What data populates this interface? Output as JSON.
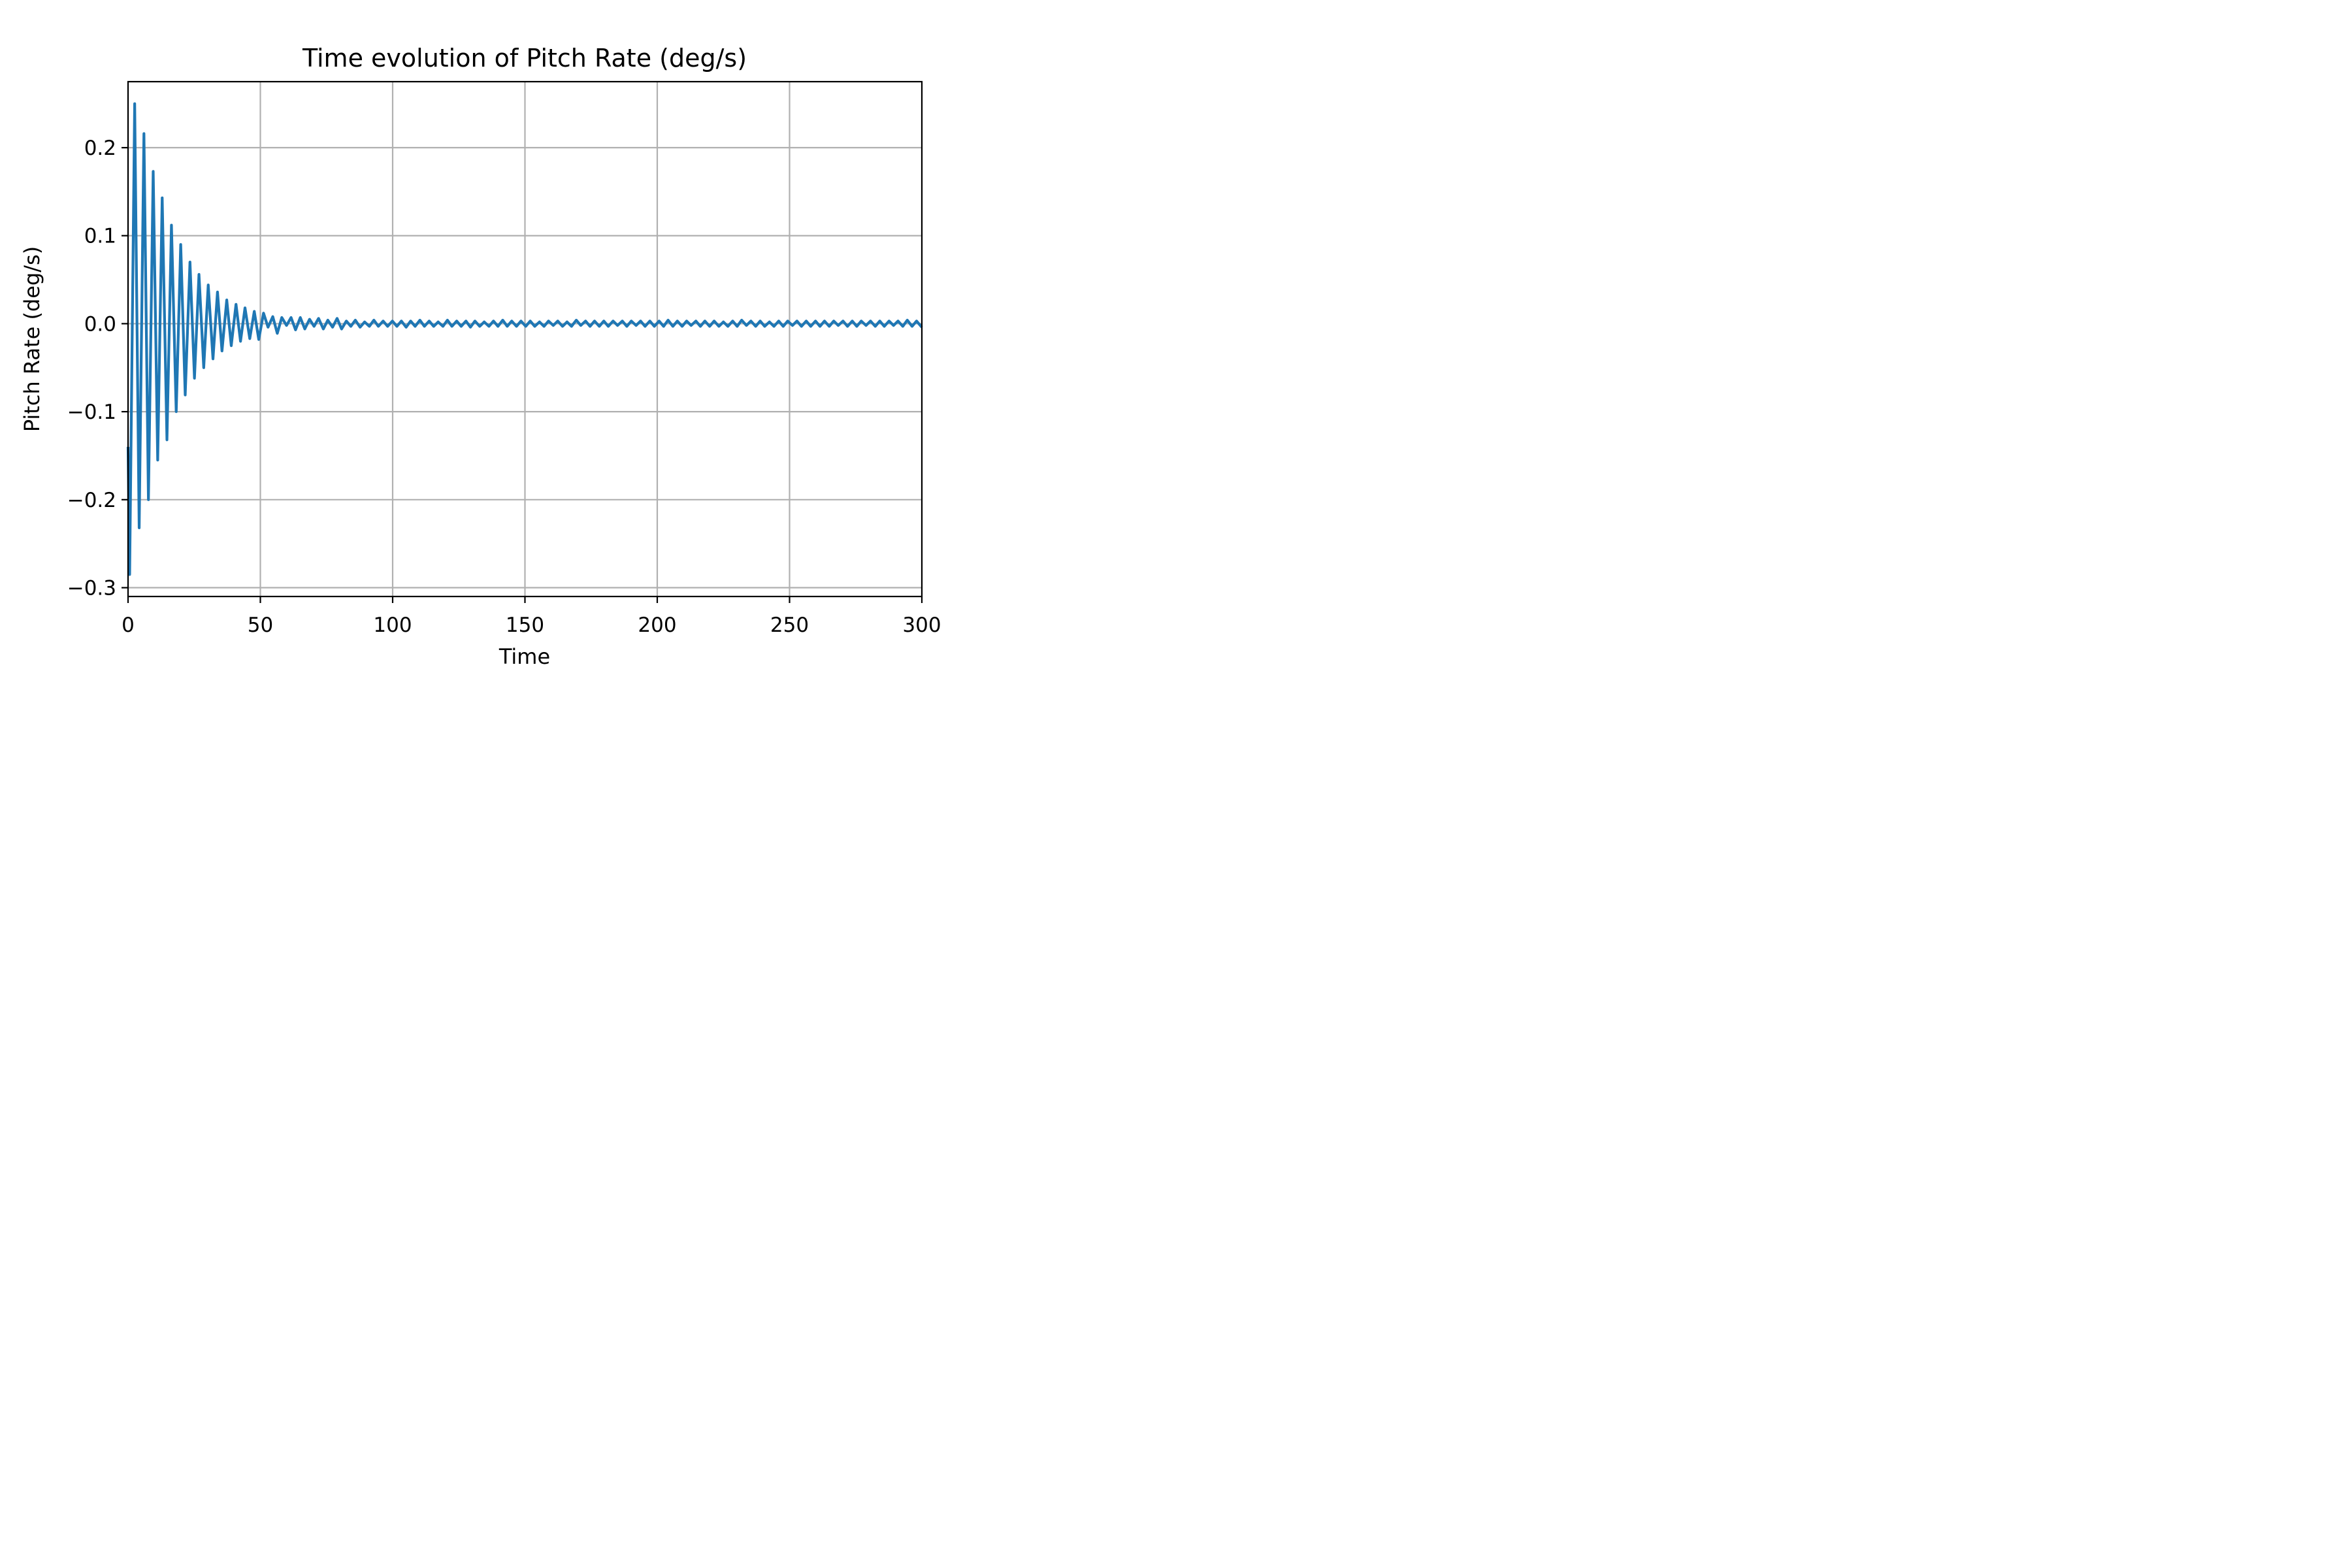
{
  "chart_data": {
    "type": "line",
    "title": "Time evolution of Pitch Rate (deg/s)",
    "xlabel": "Time",
    "ylabel": "Pitch Rate (deg/s)",
    "xlim": [
      0,
      300
    ],
    "ylim": [
      -0.31,
      0.275
    ],
    "grid": true,
    "xticks": [
      0,
      50,
      100,
      150,
      200,
      250,
      300
    ],
    "xtick_labels": [
      "0",
      "50",
      "100",
      "150",
      "200",
      "250",
      "300"
    ],
    "yticks": [
      -0.3,
      -0.2,
      -0.1,
      0.0,
      0.1,
      0.2
    ],
    "ytick_labels": [
      "−0.3",
      "−0.2",
      "−0.1",
      "0.0",
      "0.1",
      "0.2"
    ],
    "color": "#1f77b4",
    "series": [
      {
        "x": [
          0,
          0.6,
          2.5,
          4.2,
          6.0,
          7.7,
          9.5,
          11.2,
          12.9,
          14.7,
          16.4,
          18.2,
          19.9,
          21.6,
          23.4,
          25.1,
          26.8,
          28.6,
          30.3,
          32.1,
          33.8,
          35.5,
          37.3,
          39.0,
          40.8,
          42.5,
          44.2,
          46.0,
          47.7,
          49.4,
          51.2,
          52.9,
          54.7,
          56.4,
          58.1,
          59.9,
          61.6,
          63.3,
          65.1,
          66.8,
          68.6,
          70.3,
          72.0,
          73.8,
          75.5,
          77.3,
          79.0,
          80.7,
          82.5,
          84.2,
          85.9,
          87.7,
          89.4,
          91.2,
          92.9,
          94.6,
          96.4,
          98.1,
          99.9,
          101.6,
          103.3,
          105.1,
          106.8,
          108.5,
          110.3,
          112.0,
          113.8,
          115.5,
          117.2,
          119.0,
          120.7,
          122.4,
          124.2,
          125.9,
          127.7,
          129.4,
          131.1,
          132.9,
          134.6,
          136.4,
          138.1,
          139.8,
          141.6,
          143.3,
          145.0,
          146.8,
          148.5,
          150.3,
          152.0,
          153.7,
          155.5,
          157.2,
          158.9,
          160.7,
          162.4,
          164.2,
          165.9,
          167.6,
          169.4,
          171.1,
          172.9,
          174.6,
          176.3,
          178.1,
          179.8,
          181.5,
          183.3,
          185.0,
          186.8,
          188.5,
          190.2,
          192.0,
          193.7,
          195.4,
          197.2,
          198.9,
          200.7,
          202.4,
          204.1,
          205.9,
          207.6,
          209.4,
          211.1,
          212.8,
          214.6,
          216.3,
          218.0,
          219.8,
          221.5,
          223.3,
          225.0,
          226.7,
          228.5,
          230.2,
          231.9,
          233.7,
          235.4,
          237.2,
          238.9,
          240.6,
          242.4,
          244.1,
          245.9,
          247.6,
          249.3,
          251.1,
          252.8,
          254.5,
          256.3,
          258.0,
          259.8,
          261.5,
          263.2,
          265.0,
          266.7,
          268.4,
          270.2,
          271.9,
          273.7,
          275.4,
          277.1,
          278.9,
          280.6,
          282.4,
          284.1,
          285.8,
          287.6,
          289.3,
          291.0,
          292.8,
          294.5,
          296.3,
          298.0,
          299.7,
          300
        ],
        "y": [
          -0.14,
          -0.285,
          0.25,
          -0.232,
          0.216,
          -0.2,
          0.173,
          -0.155,
          0.143,
          -0.132,
          0.112,
          -0.1,
          0.09,
          -0.081,
          0.07,
          -0.062,
          0.056,
          -0.05,
          0.044,
          -0.04,
          0.036,
          -0.031,
          0.027,
          -0.025,
          0.022,
          -0.02,
          0.018,
          -0.017,
          0.014,
          -0.018,
          0.012,
          -0.004,
          0.008,
          -0.011,
          0.007,
          -0.002,
          0.007,
          -0.007,
          0.007,
          -0.006,
          0.005,
          -0.003,
          0.006,
          -0.006,
          0.004,
          -0.004,
          0.006,
          -0.006,
          0.003,
          -0.003,
          0.004,
          -0.004,
          0.002,
          -0.003,
          0.004,
          -0.003,
          0.003,
          -0.003,
          0.003,
          -0.003,
          0.003,
          -0.004,
          0.003,
          -0.003,
          0.004,
          -0.003,
          0.003,
          -0.003,
          0.002,
          -0.003,
          0.004,
          -0.003,
          0.003,
          -0.003,
          0.003,
          -0.004,
          0.003,
          -0.003,
          0.002,
          -0.003,
          0.003,
          -0.003,
          0.004,
          -0.003,
          0.003,
          -0.003,
          0.003,
          -0.003,
          0.003,
          -0.003,
          0.002,
          -0.003,
          0.003,
          -0.002,
          0.003,
          -0.003,
          0.002,
          -0.003,
          0.004,
          -0.002,
          0.003,
          -0.003,
          0.003,
          -0.003,
          0.003,
          -0.003,
          0.003,
          -0.002,
          0.003,
          -0.003,
          0.003,
          -0.002,
          0.003,
          -0.003,
          0.003,
          -0.003,
          0.003,
          -0.003,
          0.004,
          -0.003,
          0.003,
          -0.003,
          0.003,
          -0.002,
          0.003,
          -0.003,
          0.003,
          -0.003,
          0.003,
          -0.003,
          0.002,
          -0.003,
          0.003,
          -0.003,
          0.004,
          -0.002,
          0.003,
          -0.003,
          0.003,
          -0.003,
          0.002,
          -0.003,
          0.003,
          -0.003,
          0.003,
          -0.002,
          0.003,
          -0.003,
          0.003,
          -0.003,
          0.003,
          -0.003,
          0.003,
          -0.003,
          0.003,
          -0.002,
          0.003,
          -0.003,
          0.003,
          -0.003,
          0.003,
          -0.002,
          0.003,
          -0.003,
          0.003,
          -0.003,
          0.003,
          -0.002,
          0.003,
          -0.003,
          0.004,
          -0.003,
          0.003,
          -0.003,
          -0.004
        ]
      }
    ]
  }
}
